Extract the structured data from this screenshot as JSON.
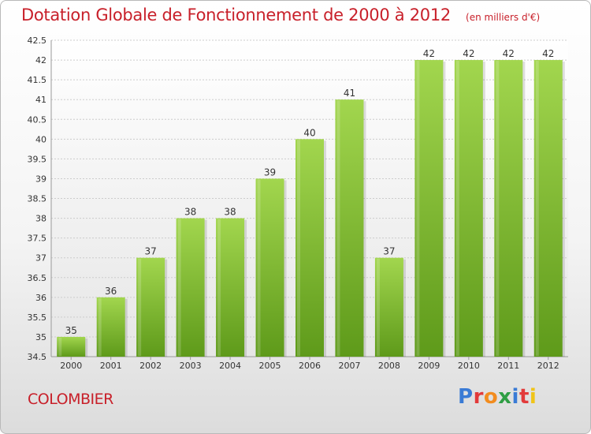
{
  "title": "Dotation Globale de Fonctionnement de 2000 à 2012",
  "subtitle": "(en milliers d'€)",
  "commune": "COLOMBIER",
  "logo": {
    "text": "Proxiti",
    "letter_colors": [
      "#3a7bd5",
      "#e23a3a",
      "#f28c1e",
      "#2f9e44",
      "#3a7bd5",
      "#e23a3a",
      "#f0c419"
    ]
  },
  "colors": {
    "bar": "#7fbf32",
    "bar_light": "#a2d64e",
    "bar_dark": "#5e9a1a",
    "title": "#c8202a",
    "grid": "#cccccc"
  },
  "chart_data": {
    "type": "bar",
    "categories": [
      "2000",
      "2001",
      "2002",
      "2003",
      "2004",
      "2005",
      "2006",
      "2007",
      "2008",
      "2009",
      "2010",
      "2011",
      "2012"
    ],
    "values": [
      35,
      36,
      37,
      38,
      38,
      39,
      40,
      41,
      37,
      42,
      42,
      42,
      42
    ],
    "data_labels": [
      "35",
      "36",
      "37",
      "38",
      "38",
      "39",
      "40",
      "41",
      "37",
      "42",
      "42",
      "42",
      "42"
    ],
    "ylim": [
      34.5,
      42.5
    ],
    "yticks": [
      "34.5",
      "35",
      "35.5",
      "36",
      "36.5",
      "37",
      "37.5",
      "38",
      "38.5",
      "39",
      "39.5",
      "40",
      "40.5",
      "41",
      "41.5",
      "42",
      "42.5"
    ],
    "grid": true
  }
}
